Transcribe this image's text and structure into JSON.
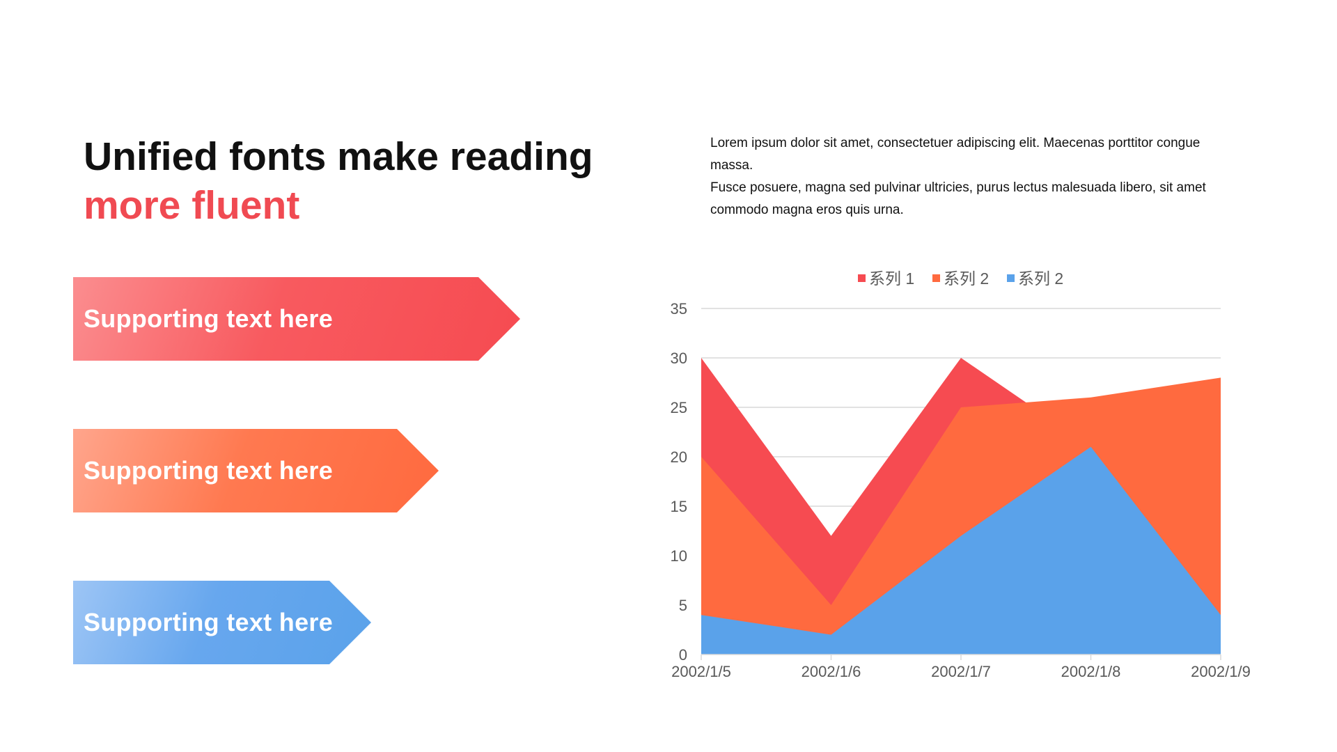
{
  "slide": {
    "title_line1": "Unified fonts make reading",
    "title_line2": "more fluent",
    "title_accent_color": "#f04a52",
    "description": [
      "Lorem ipsum dolor sit amet, consectetuer adipiscing elit. Maecenas porttitor congue massa.",
      "Fusce posuere, magna sed pulvinar ultricies, purus lectus malesuada libero, sit amet commodo magna eros quis urna."
    ],
    "arrows": [
      {
        "label": "Supporting text here",
        "color": "#f64b51"
      },
      {
        "label": "Supporting text here",
        "color": "#ff6a3f"
      },
      {
        "label": "Supporting text here",
        "color": "#5aa2ea"
      }
    ]
  },
  "chart_data": {
    "type": "area",
    "categories": [
      "2002/1/5",
      "2002/1/6",
      "2002/1/7",
      "2002/1/8",
      "2002/1/9"
    ],
    "series": [
      {
        "name": "系列 1",
        "values": [
          30,
          12,
          30,
          21,
          4
        ],
        "color": "#f64b51"
      },
      {
        "name": "系列 2",
        "values": [
          20,
          5,
          25,
          26,
          28
        ],
        "color": "#ff6a3f"
      },
      {
        "name": "系列 2",
        "values": [
          4,
          2,
          12,
          21,
          4
        ],
        "color": "#5aa2ea"
      }
    ],
    "ylim": [
      0,
      35
    ],
    "yticks": [
      0,
      5,
      10,
      15,
      20,
      25,
      30,
      35
    ],
    "grid": true,
    "legend": "top"
  }
}
